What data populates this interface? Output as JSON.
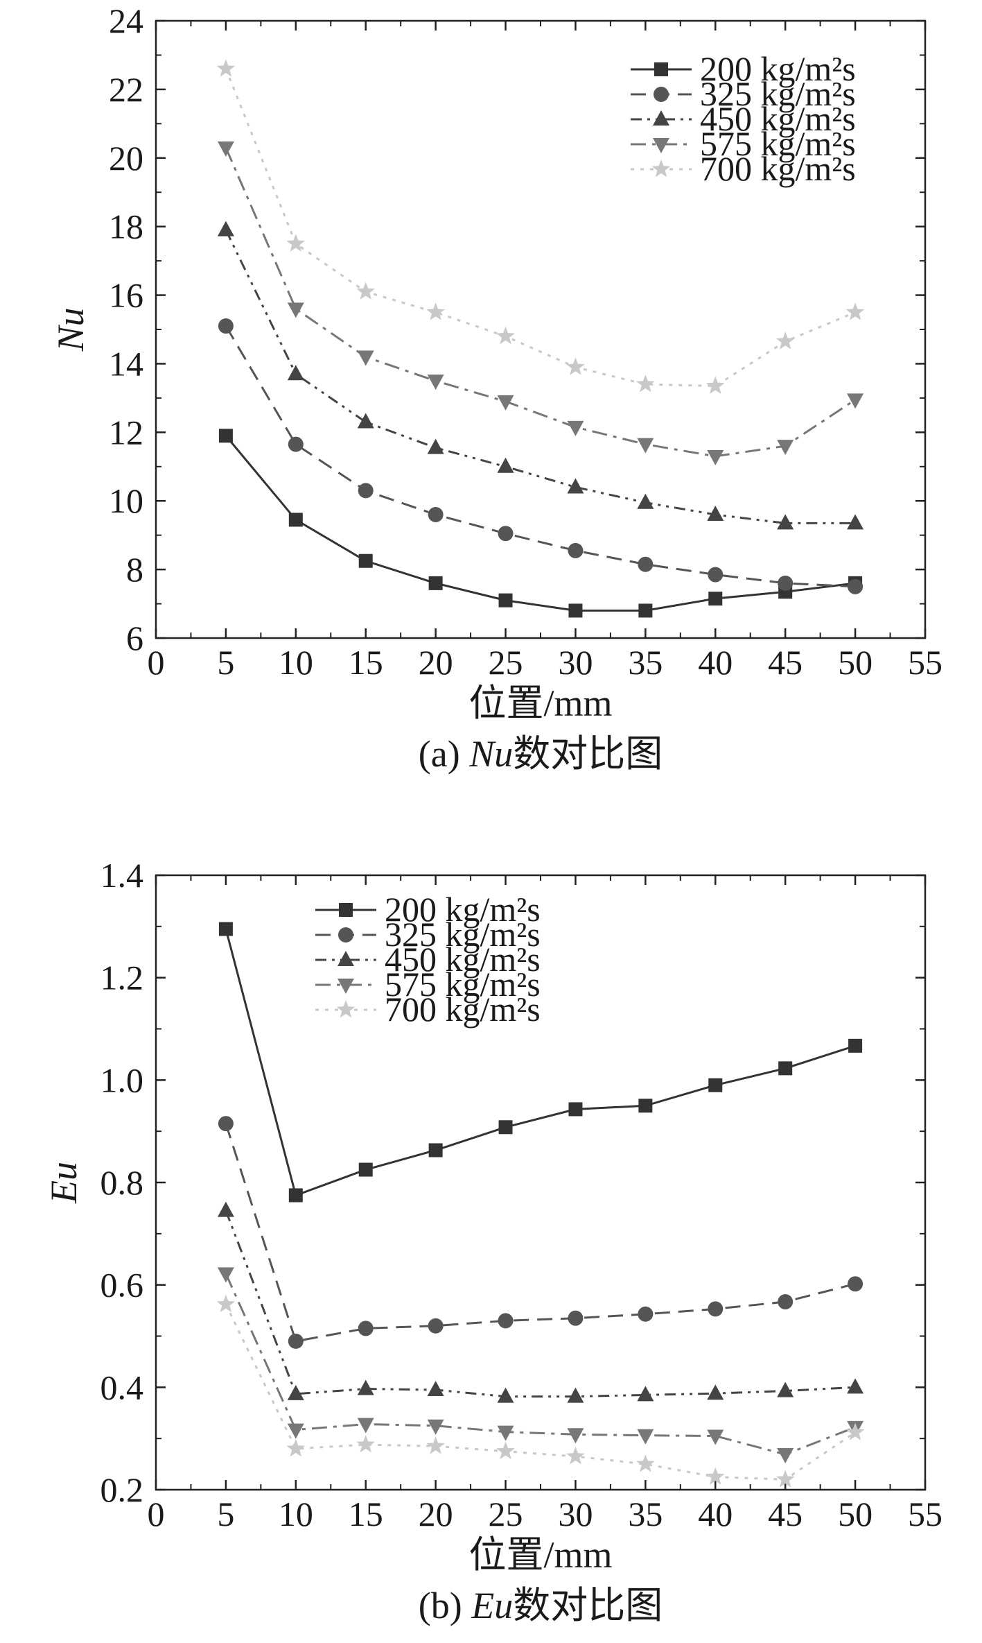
{
  "chart_data": [
    {
      "type": "line",
      "title": "",
      "caption_prefix": "(a) ",
      "caption_symbol": "Nu",
      "caption_suffix": "数对比图",
      "xlabel": "位置/mm",
      "ylabel": "Nu",
      "xlim": [
        0,
        55
      ],
      "ylim": [
        6,
        24
      ],
      "xticks": [
        0,
        5,
        10,
        15,
        20,
        25,
        30,
        35,
        40,
        45,
        50,
        55
      ],
      "yticks": [
        6,
        8,
        10,
        12,
        14,
        16,
        18,
        20,
        22,
        24
      ],
      "yticks_labels": [
        "6",
        "8",
        "10",
        "12",
        "14",
        "16",
        "18",
        "20",
        "22",
        "24"
      ],
      "x": [
        5,
        10,
        15,
        20,
        25,
        30,
        35,
        40,
        45,
        50
      ],
      "legend_position": "top-right",
      "series": [
        {
          "name": "200 kg/m²s",
          "values": [
            11.9,
            9.45,
            8.25,
            7.6,
            7.1,
            6.8,
            6.8,
            7.15,
            7.35,
            7.6
          ],
          "color": "#333333",
          "marker": "square",
          "dash": "solid"
        },
        {
          "name": "325 kg/m²s",
          "values": [
            15.1,
            11.65,
            10.3,
            9.6,
            9.05,
            8.55,
            8.15,
            7.85,
            7.6,
            7.5
          ],
          "color": "#555555",
          "marker": "circle",
          "dash": "dash"
        },
        {
          "name": "450 kg/m²s",
          "values": [
            17.9,
            13.7,
            12.3,
            11.55,
            11.0,
            10.4,
            9.95,
            9.6,
            9.35,
            9.35
          ],
          "color": "#444444",
          "marker": "triangle-up",
          "dash": "dashdotdot"
        },
        {
          "name": "575 kg/m²s",
          "values": [
            20.3,
            15.6,
            14.2,
            13.5,
            12.9,
            12.15,
            11.65,
            11.3,
            11.6,
            12.95
          ],
          "color": "#777777",
          "marker": "triangle-down",
          "dash": "dashdot"
        },
        {
          "name": "700 kg/m²s",
          "values": [
            22.6,
            17.5,
            16.1,
            15.5,
            14.8,
            13.9,
            13.4,
            13.35,
            14.65,
            15.5
          ],
          "color": "#c8c8c8",
          "marker": "star",
          "dash": "dot"
        }
      ]
    },
    {
      "type": "line",
      "title": "",
      "caption_prefix": "(b) ",
      "caption_symbol": "Eu",
      "caption_suffix": "数对比图",
      "xlabel": "位置/mm",
      "ylabel": "Eu",
      "xlim": [
        0,
        55
      ],
      "ylim": [
        0.2,
        1.4
      ],
      "xticks": [
        0,
        5,
        10,
        15,
        20,
        25,
        30,
        35,
        40,
        45,
        50,
        55
      ],
      "yticks": [
        0.2,
        0.4,
        0.6,
        0.8,
        1.0,
        1.2,
        1.4
      ],
      "yticks_labels": [
        "0.2",
        "0.4",
        "0.6",
        "0.8",
        "1.0",
        "1.2",
        "1.4"
      ],
      "x": [
        5,
        10,
        15,
        20,
        25,
        30,
        35,
        40,
        45,
        50
      ],
      "legend_position": "top-left",
      "series": [
        {
          "name": "200 kg/m²s",
          "values": [
            1.295,
            0.775,
            0.825,
            0.863,
            0.908,
            0.943,
            0.95,
            0.99,
            1.023,
            1.067
          ],
          "color": "#333333",
          "marker": "square",
          "dash": "solid"
        },
        {
          "name": "325 kg/m²s",
          "values": [
            0.915,
            0.49,
            0.515,
            0.52,
            0.53,
            0.535,
            0.543,
            0.553,
            0.567,
            0.602
          ],
          "color": "#555555",
          "marker": "circle",
          "dash": "dash"
        },
        {
          "name": "450 kg/m²s",
          "values": [
            0.745,
            0.387,
            0.397,
            0.395,
            0.382,
            0.382,
            0.385,
            0.388,
            0.393,
            0.4
          ],
          "color": "#444444",
          "marker": "triangle-up",
          "dash": "dashdotdot"
        },
        {
          "name": "575 kg/m²s",
          "values": [
            0.622,
            0.317,
            0.328,
            0.325,
            0.313,
            0.308,
            0.306,
            0.305,
            0.269,
            0.322
          ],
          "color": "#777777",
          "marker": "triangle-down",
          "dash": "dashdot"
        },
        {
          "name": "700 kg/m²s",
          "values": [
            0.562,
            0.28,
            0.288,
            0.285,
            0.275,
            0.265,
            0.25,
            0.225,
            0.22,
            0.312
          ],
          "color": "#c8c8c8",
          "marker": "star",
          "dash": "dot"
        }
      ]
    }
  ]
}
